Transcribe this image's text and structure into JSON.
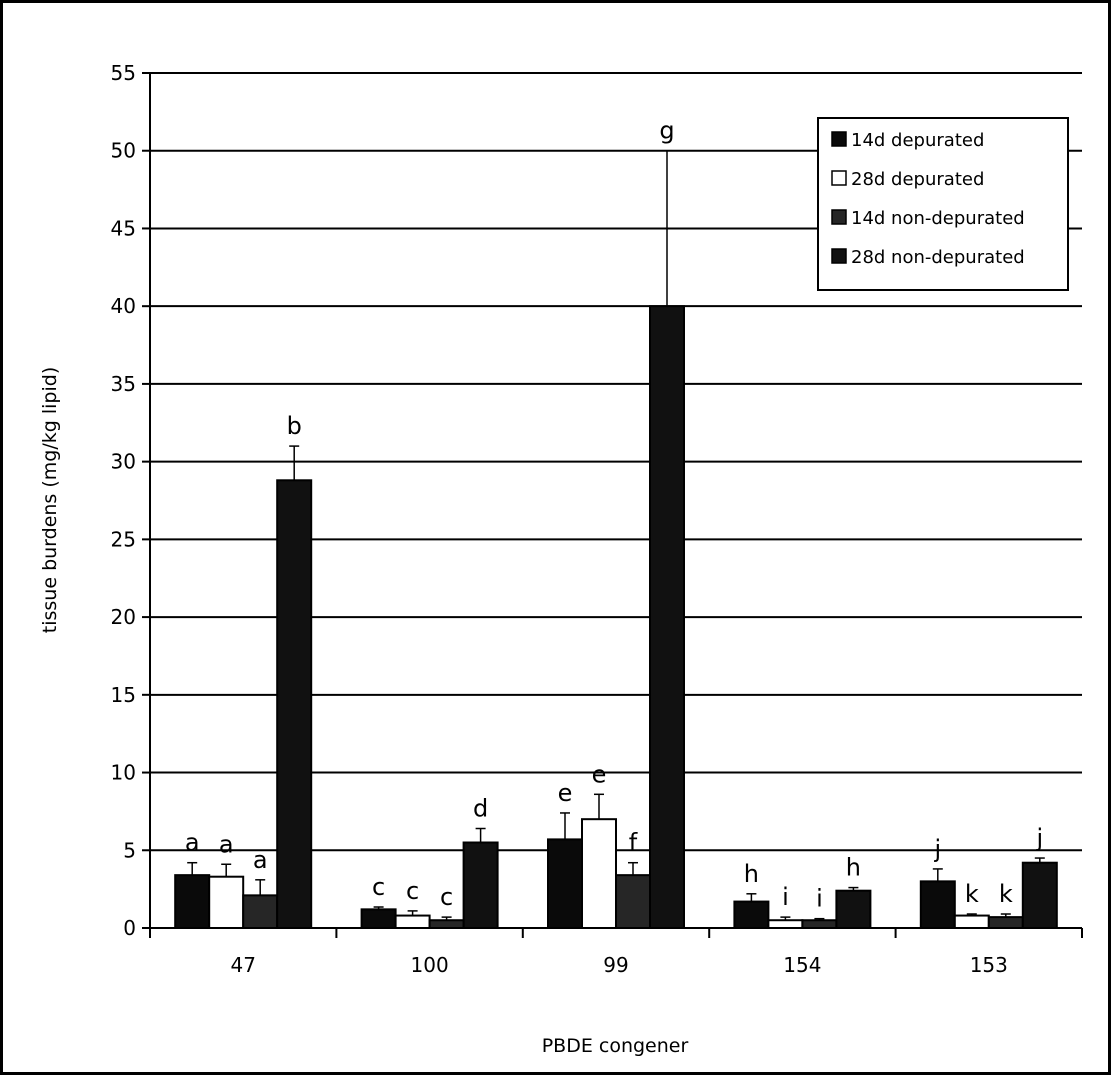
{
  "chart_data": {
    "type": "bar",
    "xlabel": "PBDE congener",
    "ylabel": "tissue burdens (mg/kg lipid)",
    "ylim": [
      0,
      55
    ],
    "yticks": [
      0,
      5,
      10,
      15,
      20,
      25,
      30,
      35,
      40,
      45,
      50,
      55
    ],
    "grid": true,
    "legend_position": "top-right",
    "categories": [
      "47",
      "100",
      "99",
      "154",
      "153"
    ],
    "series": [
      {
        "name": "14d depurated",
        "color": "#0a0a0a",
        "values": [
          3.4,
          1.2,
          5.7,
          1.7,
          3.0
        ],
        "errors": [
          0.8,
          0.15,
          1.7,
          0.5,
          0.8
        ],
        "labels": [
          "a",
          "c",
          "e",
          "h",
          "j"
        ]
      },
      {
        "name": "28d depurated",
        "color": "#ffffff",
        "values": [
          3.3,
          0.8,
          7.0,
          0.5,
          0.8
        ],
        "errors": [
          0.8,
          0.3,
          1.6,
          0.2,
          0.1
        ],
        "labels": [
          "a",
          "c",
          "e",
          "i",
          "k"
        ]
      },
      {
        "name": "14d non-depurated",
        "color": "#262626",
        "values": [
          2.1,
          0.5,
          3.4,
          0.5,
          0.7
        ],
        "errors": [
          1.0,
          0.2,
          0.8,
          0.1,
          0.2
        ],
        "labels": [
          "a",
          "c",
          "f",
          "i",
          "k"
        ]
      },
      {
        "name": "28d non-depurated",
        "color": "#111111",
        "values": [
          28.8,
          5.5,
          40.0,
          2.4,
          4.2
        ],
        "errors": [
          2.2,
          0.9,
          10.0,
          0.2,
          0.3
        ],
        "labels": [
          "b",
          "d",
          "g",
          "h",
          "j"
        ]
      }
    ]
  }
}
